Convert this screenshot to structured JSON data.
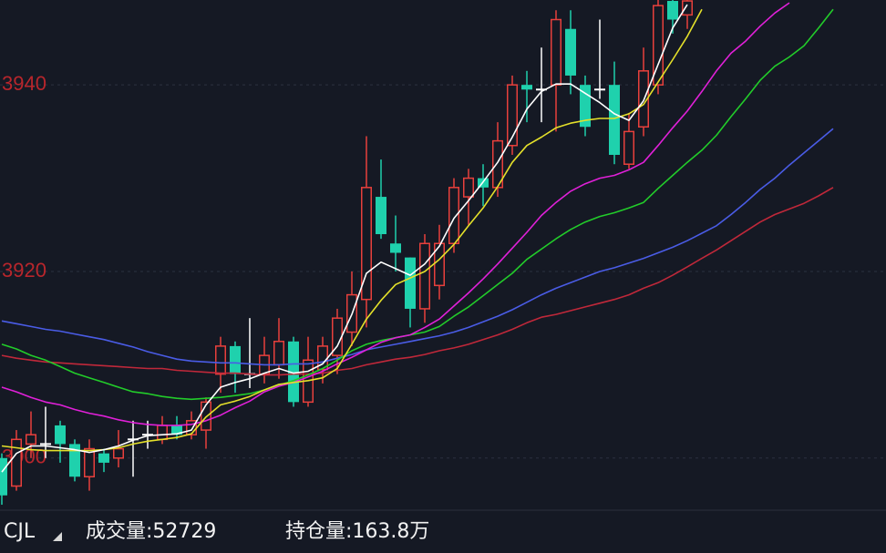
{
  "chart_data": {
    "type": "candlestick",
    "ylim": [
      3894.9,
      3949.1
    ],
    "yticks": [
      3900,
      3920,
      3940
    ],
    "grid": true,
    "up_color": "#e8403c",
    "down_color": "#1fd1ad",
    "doji_color": "#ffffff",
    "open": [
      3900,
      3897,
      3901.5,
      3901.5,
      3903.5,
      3901.5,
      3898,
      3900.5,
      3900,
      3902,
      3902.5,
      3902,
      3903.5,
      3902.5,
      3903,
      3909,
      3912,
      3909,
      3909,
      3910,
      3912.5,
      3906,
      3909.5,
      3911,
      3913.5,
      3917,
      3928,
      3923,
      3921.5,
      3916,
      3918.5,
      3923,
      3928,
      3930,
      3929,
      3933.5,
      3940,
      3939.5,
      3940,
      3946,
      3940,
      3939.5,
      3940,
      3931.5,
      3935.5,
      3940,
      3949,
      3947.5,
      null,
      null,
      null,
      null,
      null,
      null,
      null,
      null,
      null,
      null
    ],
    "high": [
      3900.5,
      3903,
      3905,
      3905.5,
      3904,
      3902,
      3902,
      3901,
      3903,
      3904,
      3904,
      3904.5,
      3904.5,
      3905,
      3906.5,
      3913,
      3912.5,
      3915,
      3913,
      3915,
      3913,
      3913,
      3913,
      3916,
      3920,
      3934.5,
      3932,
      3926,
      3921.5,
      3924,
      3925,
      3930,
      3931,
      3931.5,
      3936,
      3941,
      3941.5,
      3944,
      3948,
      3948,
      3941,
      3947,
      3942.5,
      3937,
      3944,
      3950,
      3950,
      3950,
      null,
      null,
      null,
      null,
      null,
      null,
      null,
      null,
      null,
      null
    ],
    "low": [
      3895,
      3896.5,
      3900,
      3900,
      3899.5,
      3897.5,
      3896.5,
      3898.5,
      3899,
      3898,
      3901,
      3901.5,
      3902,
      3902,
      3901,
      3907,
      3907,
      3907.5,
      3908,
      3908.5,
      3905.5,
      3905.5,
      3908,
      3909,
      3912,
      3914,
      3923.5,
      3920,
      3914,
      3914.5,
      3917,
      3922,
      3925,
      3927,
      3928,
      3932.5,
      3936,
      3936,
      3935,
      3939,
      3934.5,
      3938.5,
      3931.5,
      3931,
      3934.5,
      3939,
      3945.5,
      3946,
      null,
      null,
      null,
      null,
      null,
      null,
      null,
      null,
      null,
      null
    ],
    "close": [
      3896,
      3902,
      3902.5,
      3901.5,
      3901.5,
      3898,
      3901,
      3899.5,
      3901,
      3902,
      3902.5,
      3903.5,
      3902.5,
      3904,
      3906,
      3912,
      3909,
      3909,
      3911,
      3912.5,
      3906,
      3910.5,
      3912,
      3915,
      3917.5,
      3929,
      3924,
      3922,
      3916,
      3923,
      3923,
      3929,
      3930,
      3929,
      3934,
      3940,
      3939.5,
      3939.5,
      3947,
      3941,
      3935.5,
      3939.5,
      3932.5,
      3935,
      3941.5,
      3948.5,
      3947,
      3949,
      null,
      null,
      null,
      null,
      null,
      null,
      null,
      null,
      null,
      null
    ],
    "series": [
      {
        "color": "#4a5ce6",
        "values": [
          3914.7,
          3914.4,
          3914.1,
          3913.8,
          3913.6,
          3913.3,
          3913.0,
          3912.7,
          3912.3,
          3911.9,
          3911.4,
          3911.0,
          3910.6,
          3910.4,
          3910.3,
          3910.2,
          3910.2,
          3910.1,
          3910.0,
          3910.0,
          3910.1,
          3910.1,
          3910.3,
          3910.7,
          3911.1,
          3911.6,
          3911.9,
          3912.2,
          3912.5,
          3912.8,
          3913.1,
          3913.5,
          3914.0,
          3914.6,
          3915.2,
          3915.9,
          3916.7,
          3917.5,
          3918.2,
          3918.8,
          3919.4,
          3920.0,
          3920.4,
          3920.9,
          3921.4,
          3922.0,
          3922.6,
          3923.3,
          3924.1,
          3924.9,
          3926.1,
          3927.4,
          3928.8,
          3930.0,
          3931.4,
          3932.7,
          3934.0,
          3935.3
        ]
      },
      {
        "color": "#c0283a",
        "values": [
          3911.0,
          3910.7,
          3910.5,
          3910.3,
          3910.2,
          3910.1,
          3910.0,
          3909.9,
          3909.8,
          3909.7,
          3909.6,
          3909.6,
          3909.4,
          3909.3,
          3909.2,
          3909.1,
          3909.1,
          3909.0,
          3908.9,
          3908.9,
          3909.0,
          3909.0,
          3909.1,
          3909.4,
          3909.6,
          3910.0,
          3910.3,
          3910.6,
          3910.8,
          3911.1,
          3911.5,
          3911.8,
          3912.2,
          3912.7,
          3913.2,
          3913.8,
          3914.5,
          3915.1,
          3915.4,
          3915.8,
          3916.2,
          3916.6,
          3917.0,
          3917.5,
          3918.2,
          3918.8,
          3919.6,
          3920.5,
          3921.4,
          3922.3,
          3923.3,
          3924.3,
          3925.3,
          3926.1,
          3926.7,
          3927.3,
          3928.1,
          3929.0
        ]
      },
      {
        "color": "#22cc2a",
        "values": [
          3912.2,
          3911.7,
          3911.0,
          3910.5,
          3909.8,
          3909.1,
          3908.6,
          3908.1,
          3907.6,
          3907.1,
          3906.9,
          3906.6,
          3906.4,
          3906.3,
          3906.4,
          3906.5,
          3906.7,
          3906.9,
          3907.3,
          3907.8,
          3908.3,
          3908.9,
          3909.6,
          3910.5,
          3911.5,
          3912.2,
          3912.6,
          3912.9,
          3913.2,
          3913.5,
          3914.1,
          3915.2,
          3916.2,
          3917.4,
          3918.6,
          3919.8,
          3921.3,
          3922.4,
          3923.5,
          3924.5,
          3925.3,
          3925.9,
          3926.3,
          3926.8,
          3927.4,
          3928.9,
          3930.3,
          3931.7,
          3933.0,
          3934.6,
          3936.6,
          3938.5,
          3940.5,
          3942.0,
          3943.0,
          3944.2,
          3946.1,
          3948.1
        ]
      },
      {
        "color": "#e020d8",
        "values": [
          3907.6,
          3907.1,
          3906.5,
          3906.0,
          3905.7,
          3905.2,
          3904.8,
          3904.5,
          3904.1,
          3903.8,
          3903.6,
          3903.5,
          3903.5,
          3903.6,
          3904.0,
          3904.6,
          3905.4,
          3906.1,
          3907.1,
          3907.7,
          3908.1,
          3908.7,
          3909.3,
          3910.1,
          3910.8,
          3911.6,
          3912.4,
          3912.9,
          3913.2,
          3914.0,
          3914.9,
          3916.3,
          3917.7,
          3919.2,
          3920.8,
          3922.5,
          3924.2,
          3926.0,
          3927.4,
          3928.6,
          3929.4,
          3930.0,
          3930.3,
          3930.9,
          3931.7,
          3933.5,
          3935.4,
          3937.2,
          3939.3,
          3941.5,
          3943.4,
          3944.7,
          3946.3,
          3947.7,
          3948.8,
          null,
          null,
          null
        ]
      },
      {
        "color": "#e4e02a",
        "values": [
          3901.3,
          3901.1,
          3900.9,
          3900.8,
          3900.8,
          3900.8,
          3900.8,
          3900.9,
          3901.1,
          3901.5,
          3901.8,
          3902.0,
          3902.2,
          3902.6,
          3904.4,
          3905.7,
          3906.1,
          3906.6,
          3907.3,
          3907.9,
          3908.1,
          3908.3,
          3908.6,
          3909.6,
          3912.2,
          3914.9,
          3916.9,
          3918.6,
          3919.3,
          3920.0,
          3921.3,
          3922.9,
          3924.9,
          3926.8,
          3929.1,
          3931.7,
          3933.5,
          3934.4,
          3935.4,
          3935.9,
          3936.2,
          3936.4,
          3936.4,
          3936.9,
          3937.9,
          3940.3,
          3942.7,
          3945.2,
          3948.1,
          null,
          null,
          null,
          null,
          null,
          null,
          null,
          null,
          null
        ]
      },
      {
        "color": "#ffffff",
        "values": [
          3898.5,
          3900.5,
          3901.3,
          3901.3,
          3901.1,
          3900.9,
          3900.6,
          3900.9,
          3901.3,
          3901.9,
          3902.4,
          3902.5,
          3902.6,
          3903.0,
          3905.7,
          3907.6,
          3908.1,
          3908.5,
          3909.1,
          3909.6,
          3909.1,
          3909.3,
          3910.1,
          3912.0,
          3915.4,
          3919.8,
          3921.0,
          3920.3,
          3919.6,
          3920.8,
          3922.7,
          3925.7,
          3927.6,
          3929.6,
          3931.7,
          3934.4,
          3937.4,
          3939.3,
          3940.1,
          3940.1,
          3939.1,
          3938.1,
          3936.9,
          3936.2,
          3938.3,
          3942.2,
          3946.1,
          3948.6,
          null,
          null,
          null,
          null,
          null,
          null,
          null,
          null,
          null,
          null
        ]
      }
    ]
  },
  "footer": {
    "indicator": "CJL",
    "volume": "成交量:52729",
    "open_interest": "持仓量:163.8万"
  }
}
